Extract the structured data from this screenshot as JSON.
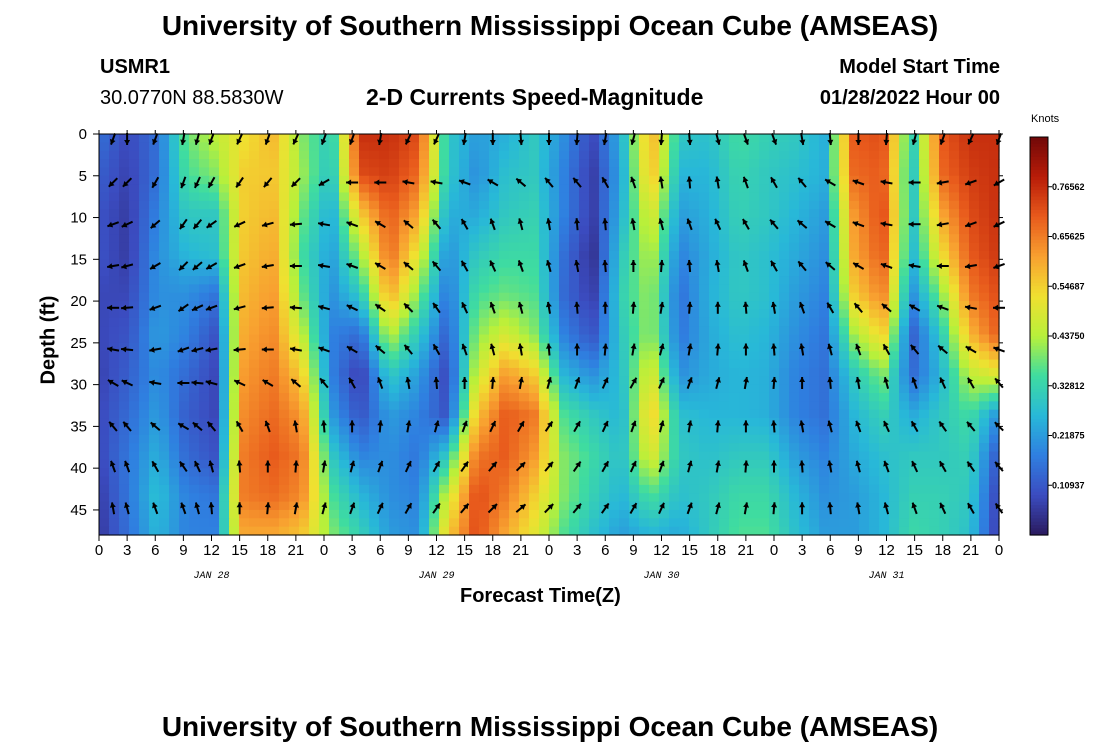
{
  "header": {
    "title": "University of Southern Mississippi Ocean Cube (AMSEAS)",
    "station": "USMR1",
    "coords": "30.0770N  88.5830W",
    "subtitle": "2-D Currents Speed-Magnitude",
    "model_start_label": "Model Start Time",
    "model_start_value": "01/28/2022 Hour 00"
  },
  "footer": {
    "title": "University of Southern Mississippi Ocean Cube (AMSEAS)"
  },
  "chart_data": {
    "type": "heatmap",
    "title": "2-D Currents Speed-Magnitude",
    "xlabel": "Forecast Time(Z)",
    "ylabel": "Depth (ft)",
    "x_ticks": [
      "0",
      "3",
      "6",
      "9",
      "12",
      "15",
      "18",
      "21",
      "0",
      "3",
      "6",
      "9",
      "12",
      "15",
      "18",
      "21",
      "0",
      "3",
      "6",
      "9",
      "12",
      "15",
      "18",
      "21",
      "0",
      "3",
      "6",
      "9",
      "12",
      "15",
      "18",
      "21",
      "0"
    ],
    "date_labels": [
      "JAN 28",
      "JAN 29",
      "JAN 30",
      "JAN 31"
    ],
    "y_ticks": [
      "0",
      "5",
      "10",
      "15",
      "20",
      "25",
      "30",
      "35",
      "40",
      "45"
    ],
    "xlim_hours": [
      0,
      96
    ],
    "ylim_ft": [
      0,
      48
    ],
    "colorbar": {
      "unit": "Knots",
      "ticks": [
        "0.76562",
        "0.65625",
        "0.54687",
        "0.43750",
        "0.32812",
        "0.21875",
        "0.10937"
      ],
      "range": [
        0,
        0.875
      ],
      "colors": [
        "#2a1a5e",
        "#3b4cc0",
        "#2f7fe0",
        "#28b8d8",
        "#3fdca0",
        "#b8f03a",
        "#f0e030",
        "#f8a030",
        "#e85a1c",
        "#b81c08",
        "#700808"
      ]
    },
    "speed_knots_grid": [
      [
        0.15,
        0.08,
        0.15,
        0.38,
        0.45,
        0.52,
        0.58,
        0.4,
        0.3,
        0.76,
        0.76,
        0.72,
        0.3,
        0.22,
        0.25,
        0.3,
        0.2,
        0.08,
        0.26,
        0.6,
        0.3,
        0.28,
        0.35,
        0.32,
        0.3,
        0.25,
        0.7,
        0.72,
        0.3,
        0.7,
        0.76,
        0.76
      ],
      [
        0.12,
        0.07,
        0.15,
        0.35,
        0.4,
        0.55,
        0.56,
        0.42,
        0.28,
        0.72,
        0.74,
        0.68,
        0.3,
        0.2,
        0.28,
        0.3,
        0.18,
        0.06,
        0.24,
        0.58,
        0.26,
        0.26,
        0.33,
        0.3,
        0.28,
        0.25,
        0.68,
        0.7,
        0.28,
        0.68,
        0.74,
        0.76
      ],
      [
        0.1,
        0.06,
        0.18,
        0.3,
        0.3,
        0.55,
        0.58,
        0.38,
        0.24,
        0.55,
        0.7,
        0.6,
        0.25,
        0.24,
        0.3,
        0.32,
        0.18,
        0.06,
        0.26,
        0.5,
        0.22,
        0.25,
        0.32,
        0.3,
        0.26,
        0.22,
        0.62,
        0.72,
        0.28,
        0.6,
        0.72,
        0.76
      ],
      [
        0.1,
        0.06,
        0.2,
        0.26,
        0.28,
        0.56,
        0.6,
        0.35,
        0.22,
        0.42,
        0.68,
        0.5,
        0.2,
        0.3,
        0.34,
        0.34,
        0.15,
        0.04,
        0.3,
        0.45,
        0.18,
        0.24,
        0.3,
        0.28,
        0.24,
        0.2,
        0.6,
        0.7,
        0.26,
        0.52,
        0.7,
        0.75
      ],
      [
        0.08,
        0.08,
        0.2,
        0.2,
        0.16,
        0.58,
        0.62,
        0.38,
        0.2,
        0.3,
        0.6,
        0.4,
        0.16,
        0.35,
        0.38,
        0.36,
        0.14,
        0.06,
        0.32,
        0.42,
        0.15,
        0.25,
        0.3,
        0.28,
        0.22,
        0.18,
        0.55,
        0.65,
        0.2,
        0.4,
        0.66,
        0.72
      ],
      [
        0.08,
        0.1,
        0.22,
        0.18,
        0.1,
        0.6,
        0.64,
        0.45,
        0.18,
        0.14,
        0.45,
        0.3,
        0.12,
        0.4,
        0.48,
        0.4,
        0.18,
        0.1,
        0.3,
        0.42,
        0.16,
        0.24,
        0.28,
        0.26,
        0.2,
        0.16,
        0.42,
        0.55,
        0.12,
        0.3,
        0.58,
        0.7
      ],
      [
        0.07,
        0.12,
        0.2,
        0.14,
        0.08,
        0.62,
        0.66,
        0.55,
        0.18,
        0.06,
        0.3,
        0.22,
        0.08,
        0.46,
        0.62,
        0.55,
        0.26,
        0.2,
        0.28,
        0.5,
        0.2,
        0.24,
        0.26,
        0.25,
        0.18,
        0.15,
        0.3,
        0.4,
        0.14,
        0.26,
        0.45,
        0.5
      ],
      [
        0.08,
        0.14,
        0.22,
        0.12,
        0.08,
        0.64,
        0.68,
        0.62,
        0.22,
        0.1,
        0.22,
        0.18,
        0.1,
        0.56,
        0.7,
        0.66,
        0.36,
        0.3,
        0.26,
        0.56,
        0.28,
        0.26,
        0.26,
        0.25,
        0.18,
        0.15,
        0.26,
        0.32,
        0.24,
        0.3,
        0.35,
        0.2
      ],
      [
        0.08,
        0.16,
        0.25,
        0.14,
        0.1,
        0.66,
        0.7,
        0.66,
        0.3,
        0.18,
        0.2,
        0.16,
        0.3,
        0.66,
        0.7,
        0.62,
        0.4,
        0.34,
        0.28,
        0.5,
        0.3,
        0.28,
        0.3,
        0.3,
        0.22,
        0.18,
        0.24,
        0.28,
        0.3,
        0.3,
        0.32,
        0.1
      ],
      [
        0.06,
        0.16,
        0.28,
        0.18,
        0.16,
        0.66,
        0.68,
        0.64,
        0.36,
        0.26,
        0.2,
        0.18,
        0.46,
        0.72,
        0.66,
        0.55,
        0.4,
        0.32,
        0.26,
        0.36,
        0.28,
        0.3,
        0.34,
        0.34,
        0.26,
        0.2,
        0.22,
        0.26,
        0.32,
        0.32,
        0.3,
        0.06
      ],
      [
        0.05,
        0.15,
        0.26,
        0.18,
        0.18,
        0.6,
        0.6,
        0.56,
        0.4,
        0.32,
        0.22,
        0.2,
        0.55,
        0.72,
        0.6,
        0.5,
        0.36,
        0.28,
        0.22,
        0.26,
        0.24,
        0.3,
        0.36,
        0.36,
        0.28,
        0.22,
        0.22,
        0.26,
        0.34,
        0.32,
        0.28,
        0.05
      ]
    ],
    "vector_rows_ft": [
      0,
      5.8,
      10.8,
      15.8,
      20.8,
      25.8,
      29.8,
      35,
      39.8,
      44.8
    ],
    "vector_columns_hours": [
      1.5,
      3,
      6,
      9,
      10.5,
      12,
      15,
      18,
      21,
      24,
      27,
      30,
      33,
      36,
      39,
      42,
      45,
      48,
      51,
      54,
      57,
      60,
      63,
      66,
      69,
      72,
      75,
      78,
      81,
      84,
      87,
      90,
      93,
      96
    ],
    "vector_directions_deg": [
      [
        200,
        180,
        200,
        190,
        195,
        200,
        205,
        200,
        205,
        200,
        200,
        190,
        205,
        205,
        190,
        180,
        175,
        180,
        185,
        190,
        195,
        185,
        175,
        165,
        160,
        160,
        170,
        175,
        180,
        185,
        195,
        200,
        205,
        200
      ],
      [
        225,
        225,
        210,
        200,
        205,
        210,
        215,
        220,
        225,
        240,
        270,
        270,
        280,
        280,
        290,
        300,
        310,
        320,
        320,
        330,
        340,
        350,
        355,
        350,
        340,
        330,
        320,
        300,
        290,
        280,
        270,
        260,
        250,
        240
      ],
      [
        250,
        245,
        230,
        215,
        220,
        235,
        245,
        255,
        265,
        280,
        290,
        300,
        310,
        320,
        330,
        340,
        345,
        350,
        355,
        355,
        350,
        345,
        340,
        335,
        330,
        320,
        310,
        300,
        290,
        280,
        270,
        260,
        250,
        245
      ],
      [
        260,
        255,
        240,
        225,
        230,
        240,
        250,
        260,
        270,
        280,
        290,
        300,
        310,
        320,
        330,
        335,
        340,
        345,
        350,
        355,
        0,
        5,
        355,
        350,
        340,
        330,
        320,
        310,
        300,
        290,
        280,
        270,
        260,
        250
      ],
      [
        270,
        265,
        250,
        235,
        245,
        250,
        255,
        265,
        275,
        285,
        295,
        305,
        315,
        325,
        335,
        340,
        345,
        350,
        355,
        0,
        5,
        10,
        5,
        0,
        355,
        350,
        340,
        330,
        320,
        310,
        300,
        290,
        280,
        270
      ],
      [
        280,
        275,
        260,
        250,
        255,
        260,
        265,
        270,
        280,
        290,
        300,
        310,
        320,
        330,
        340,
        345,
        350,
        355,
        0,
        5,
        10,
        15,
        10,
        5,
        0,
        355,
        350,
        345,
        340,
        330,
        320,
        310,
        300,
        290
      ],
      [
        300,
        295,
        280,
        270,
        275,
        285,
        295,
        300,
        310,
        320,
        330,
        340,
        350,
        355,
        0,
        5,
        10,
        15,
        20,
        25,
        30,
        25,
        20,
        15,
        10,
        5,
        0,
        355,
        350,
        345,
        340,
        335,
        330,
        320
      ],
      [
        320,
        320,
        310,
        300,
        310,
        320,
        330,
        340,
        350,
        355,
        0,
        5,
        10,
        15,
        20,
        25,
        30,
        35,
        30,
        25,
        20,
        15,
        10,
        5,
        0,
        355,
        350,
        345,
        340,
        335,
        330,
        325,
        320,
        315
      ],
      [
        340,
        340,
        330,
        325,
        335,
        345,
        355,
        0,
        5,
        10,
        15,
        20,
        25,
        30,
        35,
        40,
        45,
        40,
        35,
        30,
        25,
        20,
        15,
        10,
        5,
        0,
        355,
        350,
        345,
        340,
        335,
        330,
        325,
        320
      ],
      [
        350,
        345,
        340,
        340,
        345,
        355,
        0,
        5,
        10,
        15,
        20,
        25,
        30,
        35,
        40,
        45,
        50,
        45,
        40,
        35,
        30,
        25,
        20,
        15,
        10,
        5,
        0,
        355,
        350,
        345,
        340,
        335,
        330,
        325
      ]
    ]
  }
}
